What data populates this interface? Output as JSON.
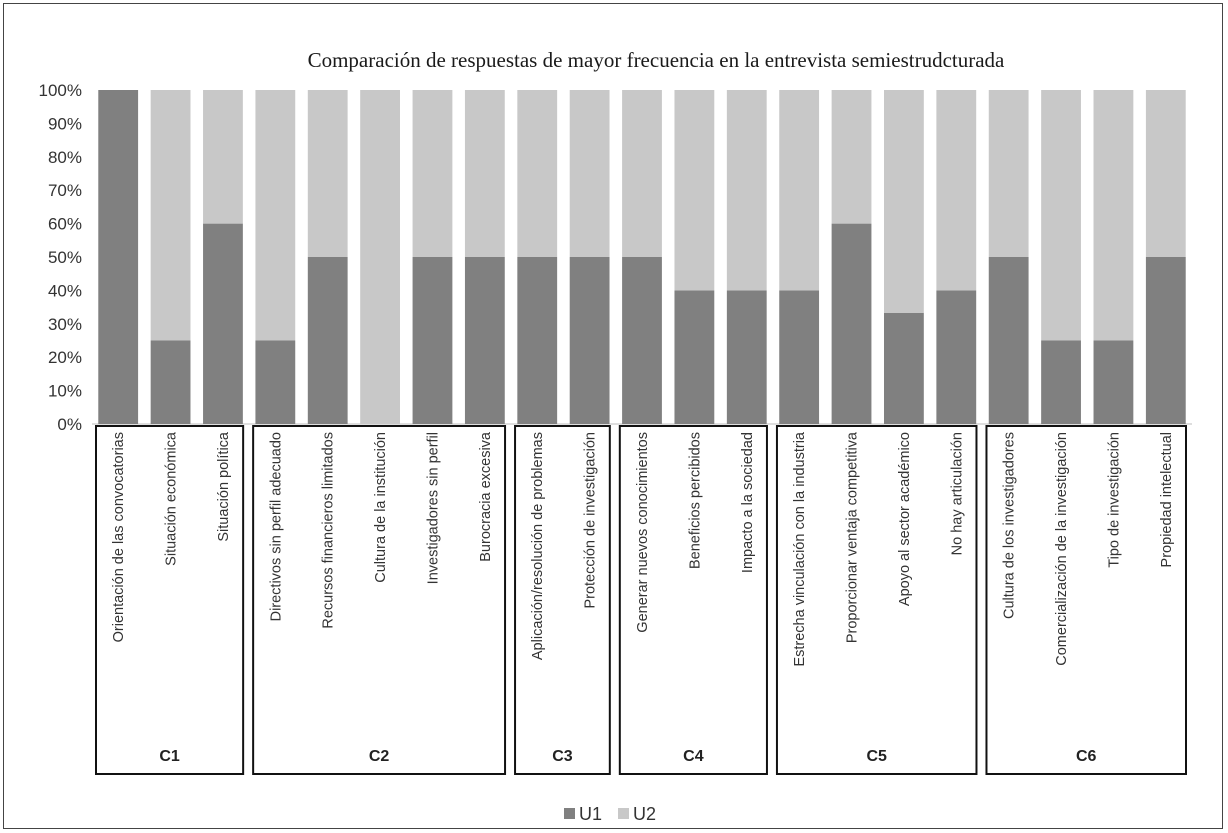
{
  "chart_data": {
    "type": "bar",
    "stacked": true,
    "title": "Comparación de respuestas de mayor frecuencia en la entrevista semiestrudcturada",
    "xlabel": "",
    "ylabel": "",
    "ylim": [
      0,
      100
    ],
    "y_ticks": [
      "0%",
      "10%",
      "20%",
      "30%",
      "40%",
      "50%",
      "60%",
      "70%",
      "80%",
      "90%",
      "100%"
    ],
    "grid": false,
    "legend_position": "bottom",
    "categories": [
      "Orientación de las convocatorias",
      "Situación económica",
      "Situación política",
      "Directivos sin perfil adecuado",
      "Recursos financieros limitados",
      "Cultura de la institución",
      "Investigadores sin perfil",
      "Burocracia excesiva",
      "Aplicación/resolución de problemas",
      "Protección de investigación",
      "Generar nuevos conocimientos",
      "Beneficios percibidos",
      "Impacto a la sociedad",
      "Estrecha vinculación con la industria",
      "Proporcionar ventaja competitiva",
      "Apoyo al sector académico",
      "No hay articulación",
      "Cultura de los investigadores",
      "Comercialización de la investigación",
      "Tipo de investigación",
      "Propiedad intelectual"
    ],
    "series": [
      {
        "name": "U1",
        "color": "#808080",
        "values": [
          100,
          25,
          60,
          25,
          50,
          0,
          50,
          50,
          50,
          50,
          50,
          40,
          40,
          40,
          60,
          33.3,
          40,
          50,
          25,
          25,
          50
        ]
      },
      {
        "name": "U2",
        "color": "#c8c8c8",
        "values": [
          0,
          75,
          40,
          75,
          50,
          100,
          50,
          50,
          50,
          50,
          50,
          60,
          60,
          60,
          40,
          66.7,
          60,
          50,
          75,
          75,
          50
        ]
      }
    ],
    "groups": [
      {
        "label": "C1",
        "categories": [
          0,
          2
        ]
      },
      {
        "label": "C2",
        "categories": [
          3,
          7
        ]
      },
      {
        "label": "C3",
        "categories": [
          8,
          9
        ]
      },
      {
        "label": "C4",
        "categories": [
          10,
          12
        ]
      },
      {
        "label": "C5",
        "categories": [
          13,
          16
        ]
      },
      {
        "label": "C6",
        "categories": [
          17,
          20
        ]
      }
    ]
  }
}
